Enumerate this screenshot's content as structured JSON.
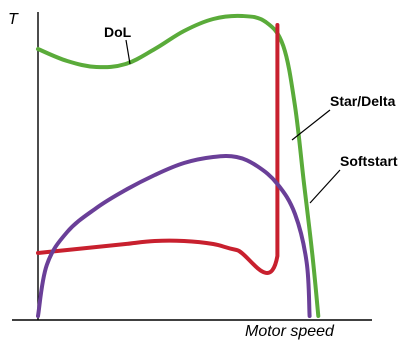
{
  "chart_data": {
    "type": "line",
    "title": "",
    "xlabel": "Motor speed",
    "ylabel": "T",
    "xlim": [
      0,
      100
    ],
    "ylim": [
      0,
      100
    ],
    "grid": false,
    "series": [
      {
        "name": "DoL",
        "color": "#5aab3a",
        "points": [
          [
            0,
            89
          ],
          [
            10,
            85
          ],
          [
            20,
            83
          ],
          [
            30,
            84
          ],
          [
            40,
            89
          ],
          [
            50,
            95
          ],
          [
            60,
            99
          ],
          [
            70,
            100
          ],
          [
            78,
            98
          ],
          [
            84,
            90
          ],
          [
            88,
            70
          ],
          [
            91,
            45
          ],
          [
            94,
            20
          ],
          [
            96,
            0
          ]
        ]
      },
      {
        "name": "Star/Delta",
        "color": "#c8202e",
        "points": [
          [
            0,
            21
          ],
          [
            10,
            22
          ],
          [
            20,
            23
          ],
          [
            30,
            24
          ],
          [
            40,
            25
          ],
          [
            50,
            25
          ],
          [
            60,
            24
          ],
          [
            68,
            22
          ],
          [
            82,
            20
          ],
          [
            82,
            97
          ]
        ]
      },
      {
        "name": "Softstart",
        "color": "#6a3f98",
        "points": [
          [
            0,
            0
          ],
          [
            3,
            17
          ],
          [
            10,
            28
          ],
          [
            20,
            36
          ],
          [
            30,
            42
          ],
          [
            40,
            47
          ],
          [
            50,
            51
          ],
          [
            60,
            53
          ],
          [
            68,
            53
          ],
          [
            75,
            50
          ],
          [
            82,
            44
          ],
          [
            88,
            34
          ],
          [
            92,
            18
          ],
          [
            93,
            0
          ]
        ]
      }
    ]
  }
}
